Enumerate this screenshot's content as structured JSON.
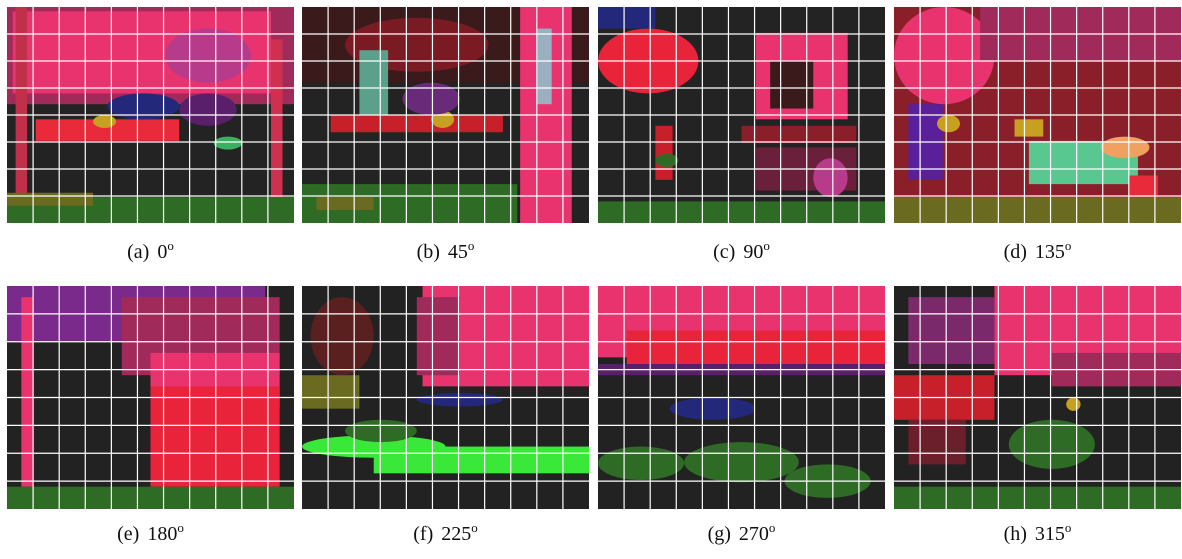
{
  "figure": {
    "panels": [
      {
        "label": "(a)",
        "angle": "0",
        "unit": "o"
      },
      {
        "label": "(b)",
        "angle": "45",
        "unit": "o"
      },
      {
        "label": "(c)",
        "angle": "90",
        "unit": "o"
      },
      {
        "label": "(d)",
        "angle": "135",
        "unit": "o"
      },
      {
        "label": "(e)",
        "angle": "180",
        "unit": "o"
      },
      {
        "label": "(f)",
        "angle": "225",
        "unit": "o"
      },
      {
        "label": "(g)",
        "angle": "270",
        "unit": "o"
      },
      {
        "label": "(h)",
        "angle": "315",
        "unit": "o"
      }
    ]
  }
}
